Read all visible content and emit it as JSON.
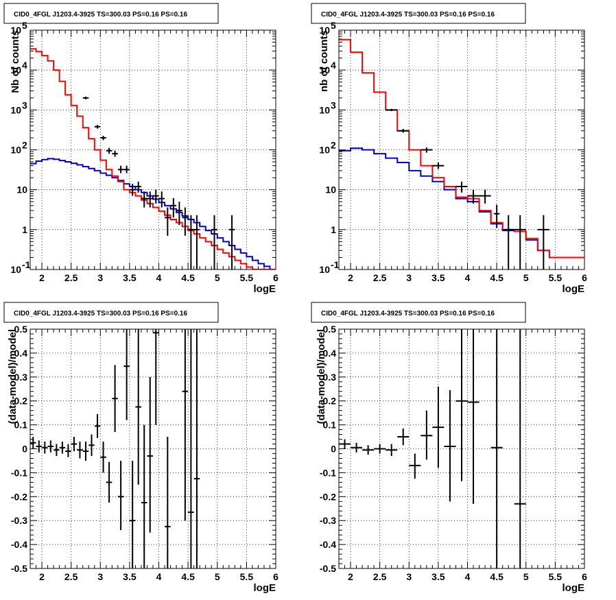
{
  "colors": {
    "data": "#000000",
    "total_model": "#ff0000",
    "source_model": "#0000cc"
  },
  "chart_data": [
    {
      "id": "top-left",
      "type": "histogram",
      "title": "CID0_4FGL J1203.4-3925 TS=300.03 PS=0.16 PS=0.16",
      "xlabel": "logE",
      "ylabel": "Nb of counts",
      "xlim": [
        1.8,
        6.0
      ],
      "ylim": [
        0.1,
        100000
      ],
      "yscale": "log",
      "grid": true,
      "x_ticks": [
        "2",
        "2.5",
        "3",
        "3.5",
        "4",
        "4.5",
        "5",
        "5.5",
        "6"
      ],
      "y_ticks": [
        "10^-1",
        "1",
        "10",
        "10^2",
        "10^3",
        "10^4",
        "10^5"
      ],
      "bin_width": 0.1,
      "bin_start": 1.8,
      "total_model": [
        34000,
        29000,
        23000,
        17000,
        10000,
        5200,
        2400,
        1300,
        700,
        360,
        190,
        100,
        55,
        32,
        22,
        16,
        10,
        8.5,
        7,
        5.5,
        4.5,
        3.6,
        2.9,
        2.3,
        1.8,
        1.5,
        1.2,
        0.95,
        0.78,
        0.62,
        0.5,
        0.4,
        0.32,
        0.26,
        0.21,
        0.17,
        0.14,
        0.115,
        0.1,
        0.1,
        0.1,
        0.1
      ],
      "source_model": [
        45,
        52,
        57,
        60,
        58,
        54,
        50,
        46,
        42,
        38,
        34,
        30,
        26,
        23,
        20,
        17,
        14,
        12,
        10,
        8.5,
        7,
        5.8,
        4.8,
        4,
        3.3,
        2.7,
        2.2,
        1.8,
        1.5,
        1.2,
        0.95,
        0.78,
        0.62,
        0.5,
        0.4,
        0.32,
        0.26,
        0.21,
        0.17,
        0.14,
        0.12,
        0.1
      ],
      "data_points": [
        {
          "x": 2.75,
          "y": 2000,
          "xerr": 0.05,
          "lo": 1850,
          "hi": 2150
        },
        {
          "x": 2.95,
          "y": 380,
          "xerr": 0.05,
          "lo": 340,
          "hi": 420
        },
        {
          "x": 3.05,
          "y": 200,
          "xerr": 0.05,
          "lo": 175,
          "hi": 225
        },
        {
          "x": 3.15,
          "y": 95,
          "xerr": 0.05,
          "lo": 80,
          "hi": 112
        },
        {
          "x": 3.25,
          "y": 80,
          "xerr": 0.05,
          "lo": 67,
          "hi": 95
        },
        {
          "x": 3.35,
          "y": 32,
          "xerr": 0.05,
          "lo": 26,
          "hi": 40
        },
        {
          "x": 3.45,
          "y": 32,
          "xerr": 0.05,
          "lo": 26,
          "hi": 40
        },
        {
          "x": 3.55,
          "y": 10,
          "xerr": 0.05,
          "lo": 7,
          "hi": 14
        },
        {
          "x": 3.65,
          "y": 12,
          "xerr": 0.05,
          "lo": 8.5,
          "hi": 16
        },
        {
          "x": 3.75,
          "y": 6,
          "xerr": 0.05,
          "lo": 3.6,
          "hi": 9
        },
        {
          "x": 3.85,
          "y": 6,
          "xerr": 0.05,
          "lo": 3.6,
          "hi": 9
        },
        {
          "x": 3.95,
          "y": 7,
          "xerr": 0.05,
          "lo": 4.5,
          "hi": 10
        },
        {
          "x": 4.05,
          "y": 6,
          "xerr": 0.05,
          "lo": 3.6,
          "hi": 9
        },
        {
          "x": 4.15,
          "y": 2,
          "xerr": 0.05,
          "lo": 0.7,
          "hi": 3.6
        },
        {
          "x": 4.25,
          "y": 4,
          "xerr": 0.05,
          "lo": 2,
          "hi": 6.2
        },
        {
          "x": 4.35,
          "y": 3,
          "xerr": 0.05,
          "lo": 1.3,
          "hi": 5
        },
        {
          "x": 4.45,
          "y": 2,
          "xerr": 0.05,
          "lo": 0.7,
          "hi": 3.6
        },
        {
          "x": 4.55,
          "y": 1,
          "xerr": 0.05,
          "lo": 0.1,
          "hi": 2.3
        },
        {
          "x": 4.65,
          "y": 1,
          "xerr": 0.05,
          "lo": 0.1,
          "hi": 2.3
        },
        {
          "x": 4.95,
          "y": 1,
          "xerr": 0.05,
          "lo": 0.1,
          "hi": 2.3
        },
        {
          "x": 5.25,
          "y": 1,
          "xerr": 0.05,
          "lo": 0.1,
          "hi": 2.3
        }
      ]
    },
    {
      "id": "top-right",
      "type": "histogram",
      "title": "CID0_4FGL J1203.4-3925 TS=300.03 PS=0.16 PS=0.16",
      "xlabel": "logE",
      "ylabel": "nb of counts",
      "xlim": [
        1.8,
        6.0
      ],
      "ylim": [
        0.1,
        100000
      ],
      "yscale": "log",
      "grid": true,
      "x_ticks": [
        "2",
        "2.5",
        "3",
        "3.5",
        "4",
        "4.5",
        "5",
        "5.5",
        "6"
      ],
      "y_ticks": [
        "10^-1",
        "1",
        "10",
        "10^2",
        "10^3",
        "10^4",
        "10^5"
      ],
      "bin_width": 0.2,
      "bin_start": 1.8,
      "total_model": [
        58000,
        28000,
        8500,
        2800,
        1000,
        300,
        100,
        40,
        20,
        12,
        6.5,
        6,
        3,
        1.5,
        1,
        0.9,
        0.6,
        0.3,
        0.2,
        0.2,
        0.2
      ],
      "source_model": [
        95,
        110,
        100,
        80,
        62,
        48,
        30,
        22,
        16,
        10,
        6,
        5,
        2.8,
        1.4,
        0.95,
        0.9,
        0.55,
        0.3,
        0.2,
        0.2,
        0.2
      ],
      "data_points": [
        {
          "x": 2.7,
          "y": 1000,
          "xerr": 0.1,
          "lo": 935,
          "hi": 1065
        },
        {
          "x": 2.9,
          "y": 300,
          "xerr": 0.1,
          "lo": 270,
          "hi": 335
        },
        {
          "x": 3.3,
          "y": 100,
          "xerr": 0.1,
          "lo": 85,
          "hi": 115
        },
        {
          "x": 3.5,
          "y": 40,
          "xerr": 0.1,
          "lo": 33,
          "hi": 48
        },
        {
          "x": 3.9,
          "y": 12,
          "xerr": 0.1,
          "lo": 8.5,
          "hi": 16
        },
        {
          "x": 4.1,
          "y": 7,
          "xerr": 0.1,
          "lo": 4.5,
          "hi": 10
        },
        {
          "x": 4.3,
          "y": 7,
          "xerr": 0.1,
          "lo": 4.5,
          "hi": 10
        },
        {
          "x": 4.5,
          "y": 2.5,
          "xerr": 0.05,
          "lo": 1.1,
          "hi": 4.2
        },
        {
          "x": 4.7,
          "y": 1,
          "xerr": 0.1,
          "lo": 0.1,
          "hi": 2.3
        },
        {
          "x": 4.9,
          "y": 1,
          "xerr": 0.1,
          "lo": 0.1,
          "hi": 2.3
        },
        {
          "x": 5.3,
          "y": 1,
          "xerr": 0.1,
          "lo": 0.1,
          "hi": 2.3
        }
      ]
    },
    {
      "id": "bottom-left",
      "type": "scatter",
      "title": "CID0_4FGL J1203.4-3925 TS=300.03 PS=0.16 PS=0.16",
      "xlabel": "logE",
      "ylabel": "(data-model)/model",
      "xlim": [
        1.8,
        6.0
      ],
      "ylim": [
        -0.5,
        0.5
      ],
      "grid": true,
      "x_ticks": [
        "2",
        "2.5",
        "3",
        "3.5",
        "4",
        "4.5",
        "5",
        "5.5",
        "6"
      ],
      "y_ticks": [
        "-0.5",
        "-0.4",
        "-0.3",
        "-0.2",
        "-0.1",
        "0",
        "0.1",
        "0.2",
        "0.3",
        "0.4",
        "0.5"
      ],
      "data_points": [
        {
          "x": 1.85,
          "y": 0.025,
          "xerr": 0.05,
          "lo": 0.0,
          "hi": 0.05
        },
        {
          "x": 1.95,
          "y": 0.01,
          "xerr": 0.05,
          "lo": -0.015,
          "hi": 0.035
        },
        {
          "x": 2.05,
          "y": 0.005,
          "xerr": 0.05,
          "lo": -0.02,
          "hi": 0.03
        },
        {
          "x": 2.15,
          "y": 0.01,
          "xerr": 0.05,
          "lo": -0.015,
          "hi": 0.035
        },
        {
          "x": 2.25,
          "y": -0.005,
          "xerr": 0.05,
          "lo": -0.03,
          "hi": 0.02
        },
        {
          "x": 2.35,
          "y": 0.005,
          "xerr": 0.05,
          "lo": -0.02,
          "hi": 0.03
        },
        {
          "x": 2.45,
          "y": -0.01,
          "xerr": 0.05,
          "lo": -0.035,
          "hi": 0.02
        },
        {
          "x": 2.55,
          "y": 0.02,
          "xerr": 0.05,
          "lo": -0.01,
          "hi": 0.05
        },
        {
          "x": 2.65,
          "y": -0.005,
          "xerr": 0.05,
          "lo": -0.04,
          "hi": 0.03
        },
        {
          "x": 2.75,
          "y": -0.01,
          "xerr": 0.05,
          "lo": -0.05,
          "hi": 0.03
        },
        {
          "x": 2.85,
          "y": 0.015,
          "xerr": 0.05,
          "lo": -0.03,
          "hi": 0.06
        },
        {
          "x": 2.95,
          "y": 0.095,
          "xerr": 0.05,
          "lo": 0.045,
          "hi": 0.145
        },
        {
          "x": 3.05,
          "y": -0.035,
          "xerr": 0.05,
          "lo": -0.1,
          "hi": 0.03
        },
        {
          "x": 3.15,
          "y": -0.14,
          "xerr": 0.05,
          "lo": -0.225,
          "hi": -0.055
        },
        {
          "x": 3.25,
          "y": 0.21,
          "xerr": 0.05,
          "lo": 0.07,
          "hi": 0.35
        },
        {
          "x": 3.35,
          "y": -0.2,
          "xerr": 0.05,
          "lo": -0.34,
          "hi": -0.05
        },
        {
          "x": 3.45,
          "y": 0.345,
          "xerr": 0.05,
          "lo": 0.12,
          "hi": 0.5
        },
        {
          "x": 3.55,
          "y": -0.3,
          "xerr": 0.05,
          "lo": -0.5,
          "hi": -0.05
        },
        {
          "x": 3.65,
          "y": 0.175,
          "xerr": 0.05,
          "lo": -0.15,
          "hi": 0.5
        },
        {
          "x": 3.75,
          "y": -0.225,
          "xerr": 0.05,
          "lo": -0.5,
          "hi": 0.1
        },
        {
          "x": 3.85,
          "y": -0.03,
          "xerr": 0.05,
          "lo": -0.35,
          "hi": 0.3
        },
        {
          "x": 3.95,
          "y": 0.485,
          "xerr": 0.05,
          "lo": 0.1,
          "hi": 0.5
        },
        {
          "x": 4.15,
          "y": -0.325,
          "xerr": 0.05,
          "lo": -0.5,
          "hi": 0.05
        },
        {
          "x": 4.45,
          "y": 0.24,
          "xerr": 0.05,
          "lo": -0.3,
          "hi": 0.5
        },
        {
          "x": 4.55,
          "y": -0.265,
          "xerr": 0.05,
          "lo": -0.5,
          "hi": 0.5
        },
        {
          "x": 4.65,
          "y": -0.125,
          "xerr": 0.05,
          "lo": -0.5,
          "hi": 0.5
        }
      ]
    },
    {
      "id": "bottom-right",
      "type": "scatter",
      "title": "CID0_4FGL J1203.4-3925 TS=300.03 PS=0.16 PS=0.16",
      "xlabel": "logE",
      "ylabel": "(data-model)/model",
      "xlim": [
        1.8,
        6.0
      ],
      "ylim": [
        -0.5,
        0.5
      ],
      "grid": true,
      "x_ticks": [
        "2",
        "2.5",
        "3",
        "3.5",
        "4",
        "4.5",
        "5",
        "5.5",
        "6"
      ],
      "y_ticks": [
        "-0.5",
        "-0.4",
        "-0.3",
        "-0.2",
        "-0.1",
        "0",
        "0.1",
        "0.2",
        "0.3",
        "0.4",
        "0.5"
      ],
      "data_points": [
        {
          "x": 1.9,
          "y": 0.02,
          "xerr": 0.1,
          "lo": 0.0,
          "hi": 0.04
        },
        {
          "x": 2.1,
          "y": 0.005,
          "xerr": 0.1,
          "lo": -0.015,
          "hi": 0.025
        },
        {
          "x": 2.3,
          "y": -0.005,
          "xerr": 0.1,
          "lo": -0.025,
          "hi": 0.015
        },
        {
          "x": 2.5,
          "y": 0.0,
          "xerr": 0.1,
          "lo": -0.02,
          "hi": 0.02
        },
        {
          "x": 2.7,
          "y": -0.005,
          "xerr": 0.1,
          "lo": -0.03,
          "hi": 0.02
        },
        {
          "x": 2.9,
          "y": 0.05,
          "xerr": 0.1,
          "lo": 0.015,
          "hi": 0.085
        },
        {
          "x": 3.1,
          "y": -0.07,
          "xerr": 0.1,
          "lo": -0.125,
          "hi": -0.02
        },
        {
          "x": 3.3,
          "y": 0.055,
          "xerr": 0.1,
          "lo": -0.045,
          "hi": 0.16
        },
        {
          "x": 3.5,
          "y": 0.09,
          "xerr": 0.1,
          "lo": -0.08,
          "hi": 0.26
        },
        {
          "x": 3.7,
          "y": 0.01,
          "xerr": 0.1,
          "lo": -0.22,
          "hi": 0.245
        },
        {
          "x": 3.9,
          "y": 0.2,
          "xerr": 0.1,
          "lo": -0.135,
          "hi": 0.5
        },
        {
          "x": 4.1,
          "y": 0.195,
          "xerr": 0.1,
          "lo": -0.23,
          "hi": 0.5
        },
        {
          "x": 4.5,
          "y": 0.005,
          "xerr": 0.1,
          "lo": -0.5,
          "hi": 0.5
        },
        {
          "x": 4.9,
          "y": -0.23,
          "xerr": 0.1,
          "lo": -0.5,
          "hi": 0.5
        }
      ]
    }
  ]
}
